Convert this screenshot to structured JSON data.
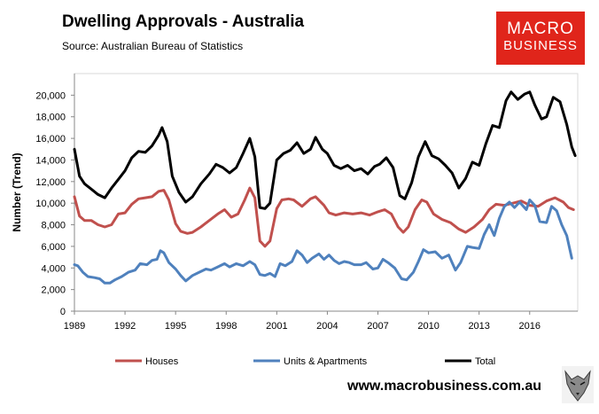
{
  "header": {
    "title": "Dwelling Approvals - Australia",
    "source": "Source:   Australian Bureau of Statistics"
  },
  "logo": {
    "line1": "MACRO",
    "line2": "BUSINESS"
  },
  "footer": {
    "url": "www.macrobusiness.com.au"
  },
  "chart_data": {
    "type": "line",
    "ylabel": "Number (Trend)",
    "xlabel": "",
    "ylim": [
      0,
      22000
    ],
    "xlim": [
      1989.0,
      2018.85
    ],
    "yticks": [
      0,
      2000,
      4000,
      6000,
      8000,
      10000,
      12000,
      14000,
      16000,
      18000,
      20000
    ],
    "ytick_labels": [
      "0",
      "2,000",
      "4,000",
      "6,000",
      "8,000",
      "10,000",
      "12,000",
      "14,000",
      "16,000",
      "18,000",
      "20,000"
    ],
    "xticks": [
      1989,
      1992,
      1995,
      1998,
      2001,
      2004,
      2007,
      2010,
      2013,
      2016
    ],
    "xtick_labels": [
      "1989",
      "1992",
      "1995",
      "1998",
      "2001",
      "2004",
      "2007",
      "2010",
      "2013",
      "2016"
    ],
    "grid": false,
    "legend_position": "bottom",
    "series": [
      {
        "name": "Houses",
        "color": "#c0504d",
        "points": [
          [
            1989.0,
            10600
          ],
          [
            1989.3,
            8800
          ],
          [
            1989.6,
            8400
          ],
          [
            1990.0,
            8400
          ],
          [
            1990.4,
            8000
          ],
          [
            1990.8,
            7800
          ],
          [
            1991.2,
            8000
          ],
          [
            1991.6,
            9000
          ],
          [
            1992.0,
            9100
          ],
          [
            1992.4,
            9900
          ],
          [
            1992.8,
            10400
          ],
          [
            1993.2,
            10500
          ],
          [
            1993.6,
            10600
          ],
          [
            1994.0,
            11100
          ],
          [
            1994.3,
            11200
          ],
          [
            1994.6,
            10300
          ],
          [
            1995.0,
            8100
          ],
          [
            1995.3,
            7400
          ],
          [
            1995.7,
            7200
          ],
          [
            1996.0,
            7300
          ],
          [
            1996.5,
            7800
          ],
          [
            1997.0,
            8400
          ],
          [
            1997.5,
            9000
          ],
          [
            1997.9,
            9400
          ],
          [
            1998.3,
            8700
          ],
          [
            1998.7,
            9000
          ],
          [
            1999.1,
            10300
          ],
          [
            1999.4,
            11400
          ],
          [
            1999.7,
            10500
          ],
          [
            2000.0,
            6500
          ],
          [
            2000.3,
            6000
          ],
          [
            2000.6,
            6500
          ],
          [
            2001.0,
            9500
          ],
          [
            2001.3,
            10300
          ],
          [
            2001.7,
            10400
          ],
          [
            2002.0,
            10300
          ],
          [
            2002.5,
            9700
          ],
          [
            2003.0,
            10400
          ],
          [
            2003.3,
            10600
          ],
          [
            2003.8,
            9800
          ],
          [
            2004.1,
            9100
          ],
          [
            2004.5,
            8900
          ],
          [
            2005.0,
            9100
          ],
          [
            2005.5,
            9000
          ],
          [
            2006.0,
            9100
          ],
          [
            2006.5,
            8900
          ],
          [
            2007.0,
            9200
          ],
          [
            2007.4,
            9400
          ],
          [
            2007.8,
            9000
          ],
          [
            2008.2,
            7800
          ],
          [
            2008.5,
            7300
          ],
          [
            2008.8,
            7800
          ],
          [
            2009.2,
            9400
          ],
          [
            2009.6,
            10300
          ],
          [
            2009.9,
            10100
          ],
          [
            2010.3,
            9000
          ],
          [
            2010.8,
            8500
          ],
          [
            2011.3,
            8200
          ],
          [
            2011.8,
            7600
          ],
          [
            2012.2,
            7300
          ],
          [
            2012.7,
            7800
          ],
          [
            2013.2,
            8500
          ],
          [
            2013.6,
            9400
          ],
          [
            2014.0,
            9900
          ],
          [
            2014.5,
            9800
          ],
          [
            2015.0,
            10000
          ],
          [
            2015.5,
            10200
          ],
          [
            2016.0,
            9800
          ],
          [
            2016.5,
            9700
          ],
          [
            2017.0,
            10200
          ],
          [
            2017.5,
            10500
          ],
          [
            2018.0,
            10100
          ],
          [
            2018.3,
            9600
          ],
          [
            2018.6,
            9400
          ]
        ]
      },
      {
        "name": "Units & Apartments",
        "color": "#4f81bd",
        "points": [
          [
            1989.0,
            4300
          ],
          [
            1989.2,
            4200
          ],
          [
            1989.5,
            3600
          ],
          [
            1989.8,
            3200
          ],
          [
            1990.2,
            3100
          ],
          [
            1990.5,
            3000
          ],
          [
            1990.8,
            2600
          ],
          [
            1991.1,
            2600
          ],
          [
            1991.4,
            2900
          ],
          [
            1991.8,
            3200
          ],
          [
            1992.2,
            3600
          ],
          [
            1992.6,
            3800
          ],
          [
            1992.9,
            4400
          ],
          [
            1993.3,
            4300
          ],
          [
            1993.6,
            4700
          ],
          [
            1993.9,
            4800
          ],
          [
            1994.1,
            5600
          ],
          [
            1994.3,
            5400
          ],
          [
            1994.6,
            4500
          ],
          [
            1995.0,
            3900
          ],
          [
            1995.3,
            3300
          ],
          [
            1995.6,
            2800
          ],
          [
            1996.0,
            3300
          ],
          [
            1996.4,
            3600
          ],
          [
            1996.8,
            3900
          ],
          [
            1997.1,
            3800
          ],
          [
            1997.5,
            4100
          ],
          [
            1997.9,
            4400
          ],
          [
            1998.2,
            4100
          ],
          [
            1998.6,
            4400
          ],
          [
            1999.0,
            4200
          ],
          [
            1999.4,
            4600
          ],
          [
            1999.7,
            4300
          ],
          [
            2000.0,
            3400
          ],
          [
            2000.3,
            3300
          ],
          [
            2000.6,
            3500
          ],
          [
            2000.9,
            3200
          ],
          [
            2001.2,
            4400
          ],
          [
            2001.5,
            4200
          ],
          [
            2001.9,
            4600
          ],
          [
            2002.2,
            5600
          ],
          [
            2002.5,
            5200
          ],
          [
            2002.8,
            4500
          ],
          [
            2003.1,
            4900
          ],
          [
            2003.5,
            5300
          ],
          [
            2003.8,
            4800
          ],
          [
            2004.1,
            5200
          ],
          [
            2004.4,
            4700
          ],
          [
            2004.7,
            4400
          ],
          [
            2005.0,
            4600
          ],
          [
            2005.3,
            4500
          ],
          [
            2005.6,
            4300
          ],
          [
            2006.0,
            4300
          ],
          [
            2006.3,
            4500
          ],
          [
            2006.7,
            3900
          ],
          [
            2007.0,
            4000
          ],
          [
            2007.3,
            4800
          ],
          [
            2007.6,
            4500
          ],
          [
            2008.0,
            4000
          ],
          [
            2008.4,
            3000
          ],
          [
            2008.7,
            2900
          ],
          [
            2009.1,
            3600
          ],
          [
            2009.4,
            4600
          ],
          [
            2009.7,
            5700
          ],
          [
            2010.0,
            5400
          ],
          [
            2010.4,
            5500
          ],
          [
            2010.8,
            4900
          ],
          [
            2011.2,
            5200
          ],
          [
            2011.6,
            3800
          ],
          [
            2011.9,
            4500
          ],
          [
            2012.3,
            6000
          ],
          [
            2012.6,
            5900
          ],
          [
            2013.0,
            5800
          ],
          [
            2013.3,
            7100
          ],
          [
            2013.6,
            8000
          ],
          [
            2013.9,
            7000
          ],
          [
            2014.2,
            8600
          ],
          [
            2014.5,
            9700
          ],
          [
            2014.8,
            10100
          ],
          [
            2015.1,
            9600
          ],
          [
            2015.4,
            10100
          ],
          [
            2015.8,
            9400
          ],
          [
            2016.0,
            10300
          ],
          [
            2016.3,
            9800
          ],
          [
            2016.6,
            8300
          ],
          [
            2017.0,
            8200
          ],
          [
            2017.3,
            9700
          ],
          [
            2017.6,
            9300
          ],
          [
            2017.9,
            8000
          ],
          [
            2018.2,
            7000
          ],
          [
            2018.5,
            4900
          ]
        ]
      },
      {
        "name": "Total",
        "color": "#000000",
        "points": [
          [
            1989.0,
            15000
          ],
          [
            1989.3,
            12500
          ],
          [
            1989.6,
            11800
          ],
          [
            1990.0,
            11300
          ],
          [
            1990.4,
            10800
          ],
          [
            1990.8,
            10500
          ],
          [
            1991.2,
            11400
          ],
          [
            1991.6,
            12200
          ],
          [
            1992.0,
            13000
          ],
          [
            1992.4,
            14200
          ],
          [
            1992.8,
            14800
          ],
          [
            1993.2,
            14700
          ],
          [
            1993.6,
            15300
          ],
          [
            1994.0,
            16300
          ],
          [
            1994.2,
            17000
          ],
          [
            1994.5,
            15700
          ],
          [
            1994.8,
            12500
          ],
          [
            1995.2,
            11000
          ],
          [
            1995.6,
            10100
          ],
          [
            1996.0,
            10600
          ],
          [
            1996.5,
            11800
          ],
          [
            1997.0,
            12700
          ],
          [
            1997.4,
            13600
          ],
          [
            1997.8,
            13300
          ],
          [
            1998.2,
            12800
          ],
          [
            1998.6,
            13300
          ],
          [
            1999.0,
            14600
          ],
          [
            1999.4,
            16000
          ],
          [
            1999.7,
            14300
          ],
          [
            2000.0,
            9600
          ],
          [
            2000.3,
            9500
          ],
          [
            2000.6,
            10000
          ],
          [
            2001.0,
            14000
          ],
          [
            2001.4,
            14600
          ],
          [
            2001.8,
            14900
          ],
          [
            2002.2,
            15600
          ],
          [
            2002.6,
            14600
          ],
          [
            2003.0,
            15000
          ],
          [
            2003.3,
            16100
          ],
          [
            2003.7,
            15000
          ],
          [
            2004.0,
            14600
          ],
          [
            2004.4,
            13500
          ],
          [
            2004.8,
            13200
          ],
          [
            2005.2,
            13500
          ],
          [
            2005.6,
            13000
          ],
          [
            2006.0,
            13200
          ],
          [
            2006.4,
            12700
          ],
          [
            2006.8,
            13400
          ],
          [
            2007.1,
            13600
          ],
          [
            2007.5,
            14200
          ],
          [
            2007.9,
            13300
          ],
          [
            2008.3,
            10700
          ],
          [
            2008.6,
            10400
          ],
          [
            2009.0,
            11900
          ],
          [
            2009.4,
            14300
          ],
          [
            2009.8,
            15700
          ],
          [
            2010.2,
            14400
          ],
          [
            2010.6,
            14100
          ],
          [
            2011.0,
            13500
          ],
          [
            2011.4,
            12800
          ],
          [
            2011.8,
            11400
          ],
          [
            2012.2,
            12300
          ],
          [
            2012.6,
            13800
          ],
          [
            2013.0,
            13500
          ],
          [
            2013.4,
            15500
          ],
          [
            2013.8,
            17200
          ],
          [
            2014.2,
            17000
          ],
          [
            2014.6,
            19500
          ],
          [
            2014.9,
            20300
          ],
          [
            2015.3,
            19600
          ],
          [
            2015.7,
            20100
          ],
          [
            2016.0,
            20300
          ],
          [
            2016.3,
            19100
          ],
          [
            2016.7,
            17800
          ],
          [
            2017.0,
            18000
          ],
          [
            2017.4,
            19800
          ],
          [
            2017.8,
            19400
          ],
          [
            2018.2,
            17300
          ],
          [
            2018.5,
            15200
          ],
          [
            2018.7,
            14400
          ]
        ]
      }
    ]
  }
}
